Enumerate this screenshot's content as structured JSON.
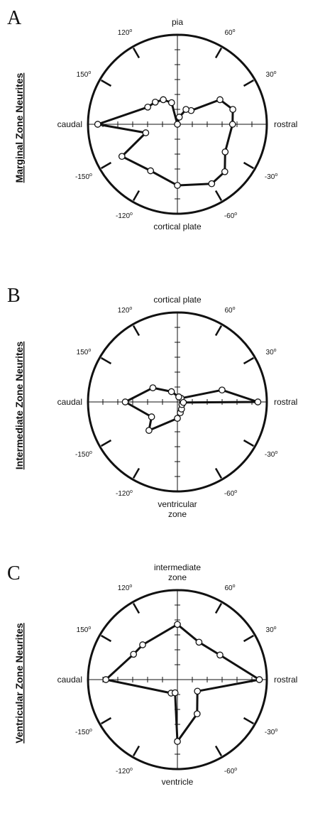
{
  "chart_data": [
    {
      "type": "polar",
      "panel_letter": "A",
      "side_label": "Marginal Zone Neurites",
      "direction_labels": {
        "top": [
          "pia"
        ],
        "bottom": [
          "cortical plate"
        ],
        "left": "caudal",
        "right": "rostral"
      },
      "angle_labels": [
        "120",
        "60",
        "150",
        "30",
        "-150",
        "-30",
        "-120",
        "-60"
      ],
      "angle_unit": "o",
      "rmax": 6,
      "points": [
        {
          "angle": 0,
          "r": 3.7
        },
        {
          "angle": 15,
          "r": 3.85
        },
        {
          "angle": 30,
          "r": 3.3
        },
        {
          "angle": 45,
          "r": 1.3
        },
        {
          "angle": 60,
          "r": 1.15
        },
        {
          "angle": 75,
          "r": 0.5
        },
        {
          "angle": 90,
          "r": 0.0
        },
        {
          "angle": 105,
          "r": 1.5
        },
        {
          "angle": 120,
          "r": 1.9
        },
        {
          "angle": 135,
          "r": 2.1
        },
        {
          "angle": 150,
          "r": 2.3
        },
        {
          "angle": 180,
          "r": 5.35
        },
        {
          "angle": 195,
          "r": 2.2
        },
        {
          "angle": 210,
          "r": 4.3
        },
        {
          "angle": 240,
          "r": 3.6
        },
        {
          "angle": 270,
          "r": 4.1
        },
        {
          "angle": 300,
          "r": 4.6
        },
        {
          "angle": 315,
          "r": 4.5
        },
        {
          "angle": 330,
          "r": 3.7
        }
      ]
    },
    {
      "type": "polar",
      "panel_letter": "B",
      "side_label": "Intermediate Zone Neurites",
      "direction_labels": {
        "top": [
          "cortical plate"
        ],
        "bottom": [
          "ventricular",
          "zone"
        ],
        "left": "caudal",
        "right": "rostral"
      },
      "angle_labels": [
        "120",
        "60",
        "150",
        "30",
        "-150",
        "-30",
        "-120",
        "-60"
      ],
      "angle_unit": "o",
      "rmax": 6,
      "points": [
        {
          "angle": 0,
          "r": 5.4
        },
        {
          "angle": 15,
          "r": 3.1
        },
        {
          "angle": 45,
          "r": 0.35
        },
        {
          "angle": 75,
          "r": 0.35
        },
        {
          "angle": 120,
          "r": 0.8
        },
        {
          "angle": 150,
          "r": 1.9
        },
        {
          "angle": 180,
          "r": 3.5
        },
        {
          "angle": 210,
          "r": 2.0
        },
        {
          "angle": 225,
          "r": 2.7
        },
        {
          "angle": 270,
          "r": 1.1
        },
        {
          "angle": 285,
          "r": 0.75
        },
        {
          "angle": 300,
          "r": 0.55
        },
        {
          "angle": 330,
          "r": 0.35
        },
        {
          "angle": 355,
          "r": 0.4
        }
      ]
    },
    {
      "type": "polar",
      "panel_letter": "C",
      "side_label": "Ventricular Zone Neurites",
      "direction_labels": {
        "top": [
          "intermediate",
          "zone"
        ],
        "bottom": [
          "ventricle"
        ],
        "left": "caudal",
        "right": "rostral"
      },
      "angle_labels": [
        "120",
        "60",
        "150",
        "30",
        "-150",
        "-30",
        "-120",
        "-60"
      ],
      "angle_unit": "o",
      "rmax": 6,
      "points": [
        {
          "angle": 0,
          "r": 5.5
        },
        {
          "angle": 30,
          "r": 3.3
        },
        {
          "angle": 60,
          "r": 2.9
        },
        {
          "angle": 90,
          "r": 3.7
        },
        {
          "angle": 135,
          "r": 3.3
        },
        {
          "angle": 150,
          "r": 3.4
        },
        {
          "angle": 180,
          "r": 4.8
        },
        {
          "angle": 245,
          "r": 1.0
        },
        {
          "angle": 260,
          "r": 0.9
        },
        {
          "angle": 270,
          "r": 4.15
        },
        {
          "angle": 300,
          "r": 2.65
        },
        {
          "angle": 330,
          "r": 1.55
        }
      ]
    }
  ]
}
